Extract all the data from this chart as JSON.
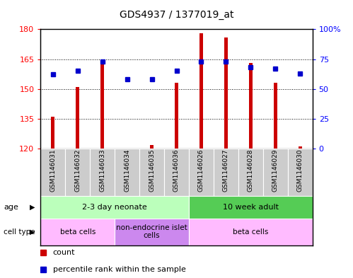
{
  "title": "GDS4937 / 1377019_at",
  "samples": [
    "GSM1146031",
    "GSM1146032",
    "GSM1146033",
    "GSM1146034",
    "GSM1146035",
    "GSM1146036",
    "GSM1146026",
    "GSM1146027",
    "GSM1146028",
    "GSM1146029",
    "GSM1146030"
  ],
  "counts": [
    136,
    151,
    163,
    120,
    122,
    153,
    178,
    176,
    163,
    153,
    121
  ],
  "percentiles": [
    62,
    65,
    73,
    58,
    58,
    65,
    73,
    73,
    68,
    67,
    63
  ],
  "bar_color": "#cc0000",
  "dot_color": "#0000cc",
  "ylim_left": [
    120,
    180
  ],
  "ylim_right": [
    0,
    100
  ],
  "yticks_left": [
    120,
    135,
    150,
    165,
    180
  ],
  "yticks_right": [
    0,
    25,
    50,
    75,
    100
  ],
  "ytick_labels_left": [
    "120",
    "135",
    "150",
    "165",
    "180"
  ],
  "ytick_labels_right": [
    "0",
    "25",
    "50",
    "75",
    "100%"
  ],
  "bar_width": 0.15,
  "age_groups": [
    {
      "label": "2-3 day neonate",
      "start": 0,
      "end": 6,
      "color": "#bbffbb"
    },
    {
      "label": "10 week adult",
      "start": 6,
      "end": 11,
      "color": "#55cc55"
    }
  ],
  "cell_type_groups": [
    {
      "label": "beta cells",
      "start": 0,
      "end": 3,
      "color": "#ffbbff"
    },
    {
      "label": "non-endocrine islet\ncells",
      "start": 3,
      "end": 6,
      "color": "#cc88ee"
    },
    {
      "label": "beta cells",
      "start": 6,
      "end": 11,
      "color": "#ffbbff"
    }
  ],
  "sample_label_bg": "#cccccc",
  "sample_label_fontsize": 6.5,
  "age_fontsize": 8,
  "cell_type_fontsize": 7.5,
  "legend_fontsize": 8,
  "title_fontsize": 10
}
